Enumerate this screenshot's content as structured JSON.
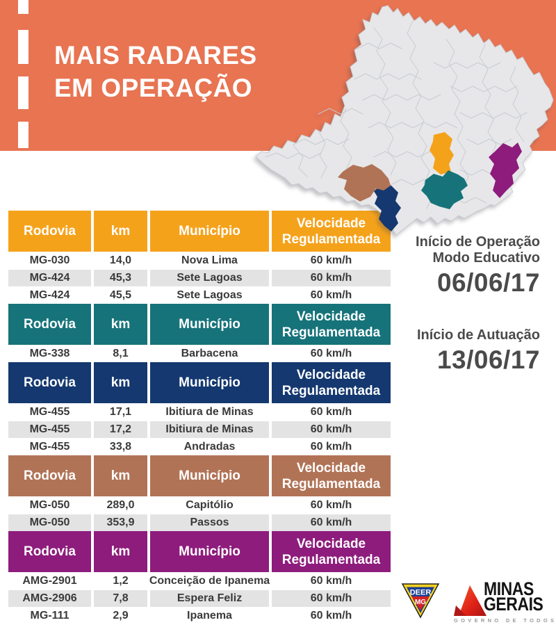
{
  "banner": {
    "title_line1": "MAIS RADARES",
    "title_line2": "EM OPERAÇÃO",
    "color": "#E87452"
  },
  "map": {
    "label": "minas-gerais-state-map",
    "base_fill": "#E7E7E9",
    "border_color": "#C6CAD0",
    "regions": [
      {
        "id": "region-orange",
        "color": "#F5A21B"
      },
      {
        "id": "region-teal",
        "color": "#16737A"
      },
      {
        "id": "region-navy",
        "color": "#14386F"
      },
      {
        "id": "region-brown",
        "color": "#B17356"
      },
      {
        "id": "region-purple",
        "color": "#8D1C7C"
      }
    ]
  },
  "tables": [
    {
      "color": "#F5A21B",
      "headers": [
        "Rodovia",
        "km",
        "Município",
        "Velocidade Regulamentada"
      ],
      "rows": [
        [
          "MG-030",
          "14,0",
          "Nova Lima",
          "60 km/h"
        ],
        [
          "MG-424",
          "45,3",
          "Sete Lagoas",
          "60 km/h"
        ],
        [
          "MG-424",
          "45,5",
          "Sete Lagoas",
          "60 km/h"
        ]
      ]
    },
    {
      "color": "#16737A",
      "headers": [
        "Rodovia",
        "km",
        "Município",
        "Velocidade Regulamentada"
      ],
      "rows": [
        [
          "MG-338",
          "8,1",
          "Barbacena",
          "60 km/h"
        ]
      ]
    },
    {
      "color": "#14386F",
      "headers": [
        "Rodovia",
        "km",
        "Município",
        "Velocidade Regulamentada"
      ],
      "rows": [
        [
          "MG-455",
          "17,1",
          "Ibitiura de Minas",
          "60 km/h"
        ],
        [
          "MG-455",
          "17,2",
          "Ibitiura de Minas",
          "60 km/h"
        ],
        [
          "MG-455",
          "33,8",
          "Andradas",
          "60 km/h"
        ]
      ]
    },
    {
      "color": "#B17356",
      "headers": [
        "Rodovia",
        "km",
        "Município",
        "Velocidade Regulamentada"
      ],
      "rows": [
        [
          "MG-050",
          "289,0",
          "Capitólio",
          "60 km/h"
        ],
        [
          "MG-050",
          "353,9",
          "Passos",
          "60 km/h"
        ]
      ]
    },
    {
      "color": "#8D1C7C",
      "headers": [
        "Rodovia",
        "km",
        "Município",
        "Velocidade Regulamentada"
      ],
      "rows": [
        [
          "AMG-2901",
          "1,2",
          "Conceição de Ipanema",
          "60 km/h"
        ],
        [
          "AMG-2906",
          "7,8",
          "Espera Feliz",
          "60 km/h"
        ],
        [
          "MG-111",
          "2,9",
          "Ipanema",
          "60 km/h"
        ]
      ]
    }
  ],
  "schedule": {
    "operation_label_line1": "Início de Operação",
    "operation_label_line2": "Modo Educativo",
    "operation_date": "06/06/17",
    "enforcement_label": "Início de Autuação",
    "enforcement_date": "13/06/17"
  },
  "footer": {
    "deer_logo": {
      "line1": "DEER",
      "line2": "MG"
    },
    "state_logo": {
      "line1": "MINAS",
      "line2": "GERAIS",
      "tagline": "GOVERNO DE TODOS"
    }
  }
}
